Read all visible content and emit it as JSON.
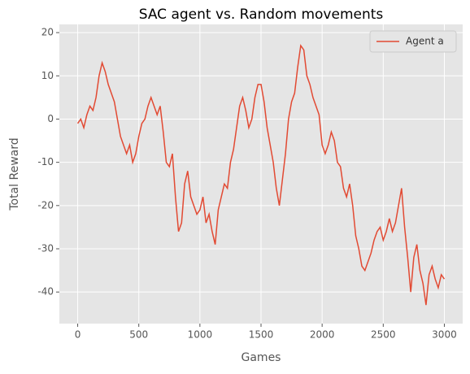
{
  "chart_data": {
    "type": "line",
    "title": "SAC agent vs. Random movements",
    "x_label": "Games",
    "y_label": "Total Reward",
    "x": [
      0,
      25,
      50,
      75,
      100,
      125,
      150,
      175,
      200,
      225,
      250,
      275,
      300,
      325,
      350,
      375,
      400,
      425,
      450,
      475,
      500,
      525,
      550,
      575,
      600,
      625,
      650,
      675,
      700,
      725,
      750,
      775,
      800,
      825,
      850,
      875,
      900,
      925,
      950,
      975,
      1000,
      1025,
      1050,
      1075,
      1100,
      1125,
      1150,
      1175,
      1200,
      1225,
      1250,
      1275,
      1300,
      1325,
      1350,
      1375,
      1400,
      1425,
      1450,
      1475,
      1500,
      1525,
      1550,
      1575,
      1600,
      1625,
      1650,
      1675,
      1700,
      1725,
      1750,
      1775,
      1800,
      1825,
      1850,
      1875,
      1900,
      1925,
      1950,
      1975,
      2000,
      2025,
      2050,
      2075,
      2100,
      2125,
      2150,
      2175,
      2200,
      2225,
      2250,
      2275,
      2300,
      2325,
      2350,
      2375,
      2400,
      2425,
      2450,
      2475,
      2500,
      2525,
      2550,
      2575,
      2600,
      2625,
      2650,
      2675,
      2700,
      2725,
      2750,
      2775,
      2800,
      2825,
      2850,
      2875,
      2900,
      2925,
      2950,
      2975,
      3000
    ],
    "series": [
      {
        "name": "Agent a",
        "color": "#e24a33",
        "values": [
          -1,
          0,
          -2,
          1,
          3,
          2,
          5,
          10,
          13,
          11,
          8,
          6,
          4,
          0,
          -4,
          -6,
          -8,
          -6,
          -10,
          -8,
          -4,
          -1,
          0,
          3,
          5,
          3,
          1,
          3,
          -3,
          -10,
          -11,
          -8,
          -18,
          -26,
          -24,
          -15,
          -12,
          -18,
          -20,
          -22,
          -21,
          -18,
          -24,
          -22,
          -26,
          -29,
          -21,
          -18,
          -15,
          -16,
          -10,
          -7,
          -2,
          3,
          5,
          2,
          -2,
          0,
          5,
          8,
          8,
          4,
          -2,
          -6,
          -10,
          -16,
          -20,
          -14,
          -8,
          0,
          4,
          6,
          12,
          17,
          16,
          10,
          8,
          5,
          3,
          1,
          -6,
          -8,
          -6,
          -3,
          -5,
          -10,
          -11,
          -16,
          -18,
          -15,
          -20,
          -27,
          -30,
          -34,
          -35,
          -33,
          -31,
          -28,
          -26,
          -25,
          -28,
          -26,
          -23,
          -26,
          -24,
          -20,
          -16,
          -25,
          -32,
          -40,
          -32,
          -29,
          -35,
          -38,
          -43,
          -36,
          -34,
          -37,
          -39,
          -36,
          -37
        ]
      }
    ],
    "xlim": [
      -150,
      3150
    ],
    "xticks": [
      0,
      500,
      1000,
      1500,
      2000,
      2500,
      3000
    ],
    "ylim": [
      -47.3,
      21.9
    ],
    "yticks": [
      -40,
      -30,
      -20,
      -10,
      0,
      10,
      20
    ],
    "grid": true,
    "legend": "upper right"
  }
}
